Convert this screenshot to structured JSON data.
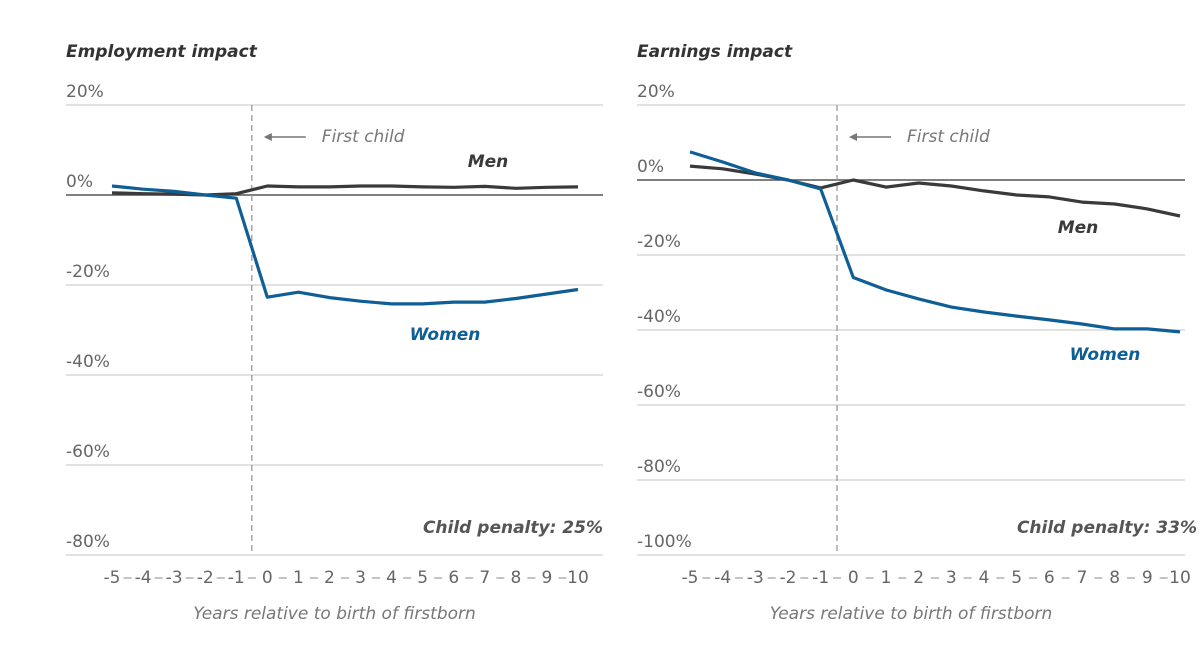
{
  "chart_data": [
    {
      "type": "line",
      "title": "Employment impact",
      "xlabel": "Years relative to birth of firstborn",
      "note": "Child penalty: 25%",
      "annotation": {
        "x": -0.5,
        "text": "First child"
      },
      "x": [
        -5,
        -4,
        -3,
        -2,
        -1,
        0,
        1,
        2,
        3,
        4,
        5,
        6,
        7,
        8,
        9,
        10
      ],
      "series": [
        {
          "name": "Men",
          "color": "#3a3a3a",
          "values": [
            0.5,
            0.3,
            0.2,
            0,
            0.3,
            2,
            1.8,
            1.8,
            2,
            2,
            1.8,
            1.7,
            1.9,
            1.5,
            1.7,
            1.8
          ]
        },
        {
          "name": "Women",
          "color": "#0f5f96",
          "values": [
            2,
            1.3,
            0.8,
            0,
            -0.7,
            -22.7,
            -21.6,
            -22.8,
            -23.6,
            -24.2,
            -24.2,
            -23.8,
            -23.8,
            -23,
            -22,
            -21
          ]
        }
      ],
      "xlim": [
        -5,
        10
      ],
      "xticks": [
        -5,
        -4,
        -3,
        -2,
        -1,
        0,
        1,
        2,
        3,
        4,
        5,
        6,
        7,
        8,
        9,
        10
      ],
      "ylim": [
        -80,
        20
      ],
      "yticks": [
        {
          "value": -80,
          "label": "-80%"
        },
        {
          "value": -60,
          "label": "-60%"
        },
        {
          "value": -40,
          "label": "-40%"
        },
        {
          "value": -20,
          "label": "-20%"
        },
        {
          "value": 0,
          "label": "0%"
        },
        {
          "value": 20,
          "label": "20%"
        }
      ],
      "grid": true
    },
    {
      "type": "line",
      "title": "Earnings impact",
      "xlabel": "Years relative to birth of firstborn",
      "note": "Child penalty: 33%",
      "annotation": {
        "x": -0.5,
        "text": "First child"
      },
      "x": [
        -5,
        -4,
        -3,
        -2,
        -1,
        0,
        1,
        2,
        3,
        4,
        5,
        6,
        7,
        8,
        9,
        10
      ],
      "series": [
        {
          "name": "Men",
          "color": "#3a3a3a",
          "values": [
            3.7,
            3,
            1.6,
            0,
            -2.1,
            0,
            -1.9,
            -0.8,
            -1.6,
            -2.9,
            -4,
            -4.5,
            -5.9,
            -6.4,
            -7.7,
            -9.6
          ]
        },
        {
          "name": "Women",
          "color": "#0f5f96",
          "values": [
            7.5,
            4.8,
            1.9,
            0,
            -2.4,
            -26,
            -29.3,
            -31.7,
            -33.9,
            -35.2,
            -36.3,
            -37.3,
            -38.4,
            -39.7,
            -39.7,
            -40.5
          ]
        }
      ],
      "xlim": [
        -5,
        10
      ],
      "xticks": [
        -5,
        -4,
        -3,
        -2,
        -1,
        0,
        1,
        2,
        3,
        4,
        5,
        6,
        7,
        8,
        9,
        10
      ],
      "ylim": [
        -100,
        20
      ],
      "yticks": [
        {
          "value": -100,
          "label": "-100%"
        },
        {
          "value": -80,
          "label": "-80%"
        },
        {
          "value": -60,
          "label": "-60%"
        },
        {
          "value": -40,
          "label": "-40%"
        },
        {
          "value": -20,
          "label": "-20%"
        },
        {
          "value": 0,
          "label": "0%"
        },
        {
          "value": 20,
          "label": "20%"
        }
      ],
      "grid": true
    }
  ]
}
